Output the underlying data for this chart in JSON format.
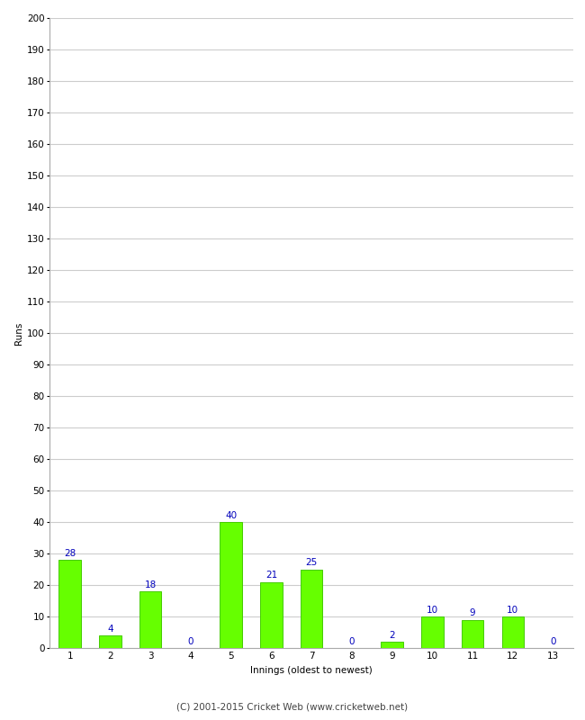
{
  "xlabel": "Innings (oldest to newest)",
  "ylabel": "Runs",
  "categories": [
    1,
    2,
    3,
    4,
    5,
    6,
    7,
    8,
    9,
    10,
    11,
    12,
    13
  ],
  "values": [
    28,
    4,
    18,
    0,
    40,
    21,
    25,
    0,
    2,
    10,
    9,
    10,
    0
  ],
  "bar_color": "#66ff00",
  "bar_edge_color": "#44cc00",
  "label_color": "#0000bb",
  "ylim": [
    0,
    200
  ],
  "yticks": [
    0,
    10,
    20,
    30,
    40,
    50,
    60,
    70,
    80,
    90,
    100,
    110,
    120,
    130,
    140,
    150,
    160,
    170,
    180,
    190,
    200
  ],
  "grid_color": "#cccccc",
  "background_color": "#ffffff",
  "footer_text": "(C) 2001-2015 Cricket Web (www.cricketweb.net)",
  "label_fontsize": 7.5,
  "axis_label_fontsize": 7.5,
  "tick_fontsize": 7.5,
  "footer_fontsize": 7.5
}
